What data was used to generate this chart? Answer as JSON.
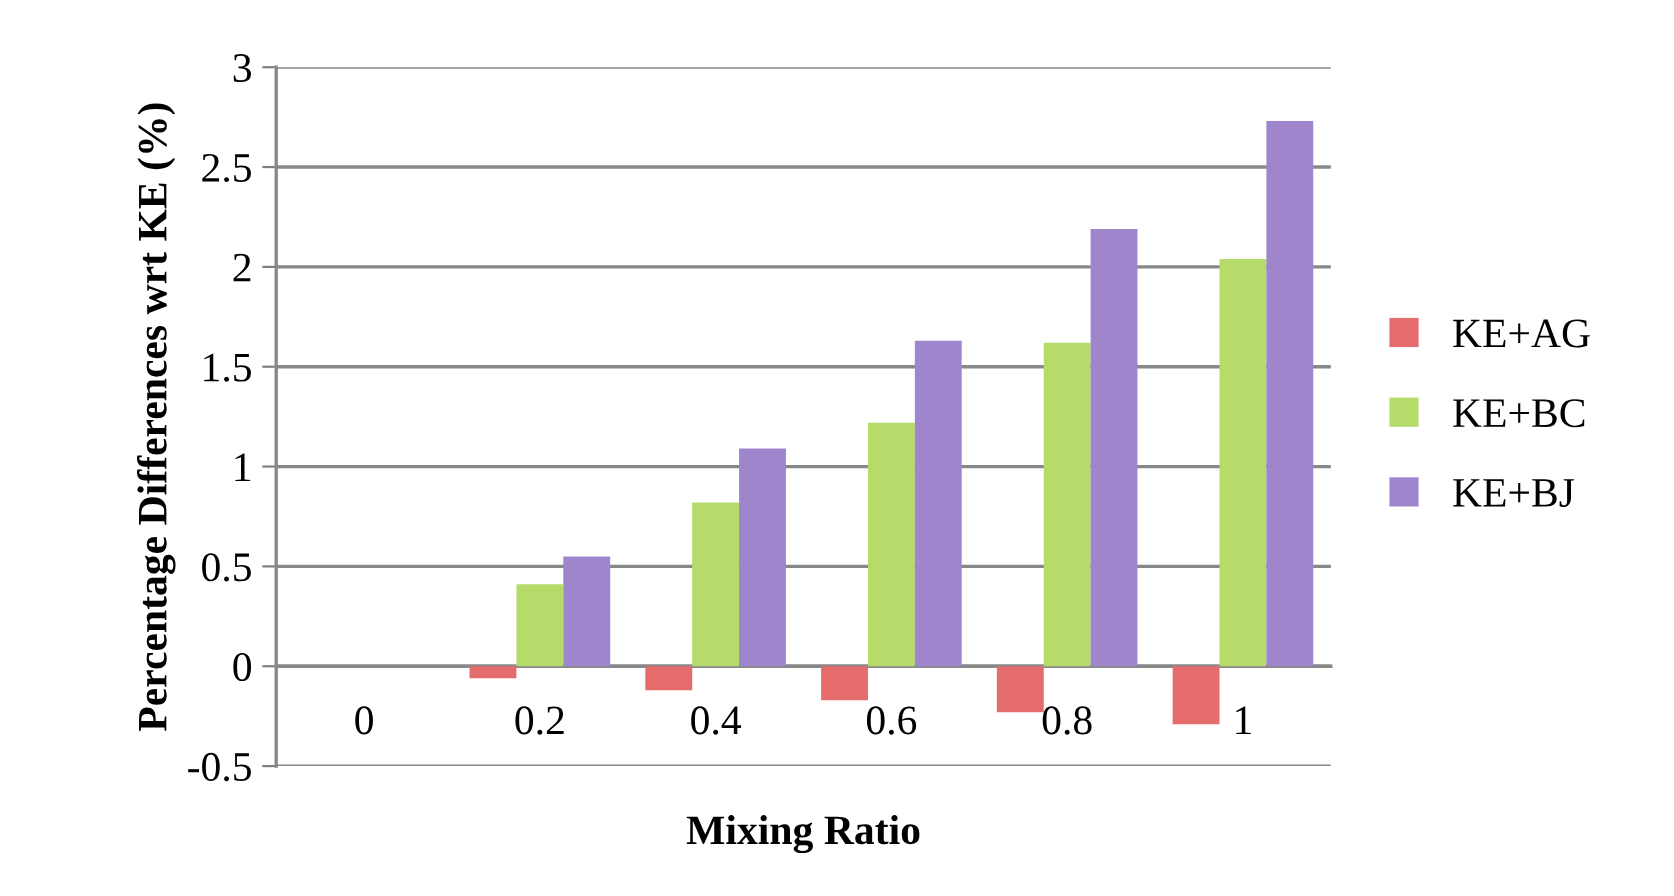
{
  "chart_data": {
    "type": "bar",
    "xlabel": "Mixing Ratio",
    "ylabel": "Percentage Differences wrt KE (%)",
    "categories": [
      "0",
      "0.2",
      "0.4",
      "0.6",
      "0.8",
      "1"
    ],
    "series": [
      {
        "name": "KE+AG",
        "color": "#e46c6c",
        "values": [
          0,
          -0.06,
          -0.12,
          -0.17,
          -0.23,
          -0.29
        ]
      },
      {
        "name": "KE+BC",
        "color": "#b5db6a",
        "values": [
          0,
          0.41,
          0.82,
          1.22,
          1.62,
          2.04
        ]
      },
      {
        "name": "KE+BJ",
        "color": "#9f86cc",
        "values": [
          0,
          0.55,
          1.09,
          1.63,
          2.19,
          2.73
        ]
      }
    ],
    "ylim": [
      -0.5,
      3
    ],
    "yticks": [
      {
        "value": -0.5,
        "label": "-0.5"
      },
      0,
      0.5,
      1,
      1.5,
      2,
      2.5,
      3
    ],
    "grid": "y",
    "legend": "right"
  }
}
